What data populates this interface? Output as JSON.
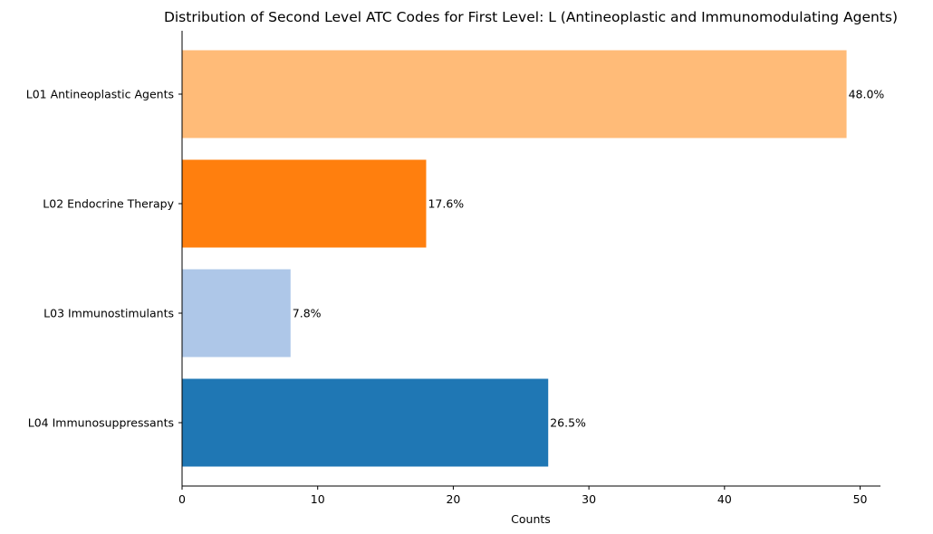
{
  "chart_data": {
    "type": "bar",
    "orientation": "horizontal",
    "title": "Distribution of Second Level ATC Codes for First Level: L (Antineoplastic and Immunomodulating Agents)",
    "xlabel": "Counts",
    "ylabel": "",
    "xlim": [
      0,
      51.5
    ],
    "xticks": [
      0,
      10,
      20,
      30,
      40,
      50
    ],
    "grid": false,
    "legend": "none",
    "categories": [
      "L01 Antineoplastic Agents",
      "L02 Endocrine Therapy",
      "L03 Immunostimulants",
      "L04 Immunosuppressants"
    ],
    "values": [
      49,
      18,
      8,
      27
    ],
    "data_labels": [
      "48.0%",
      "17.6%",
      "7.8%",
      "26.5%"
    ],
    "colors": [
      "#ffbb78",
      "#ff7f0e",
      "#aec7e8",
      "#1f77b4"
    ]
  }
}
